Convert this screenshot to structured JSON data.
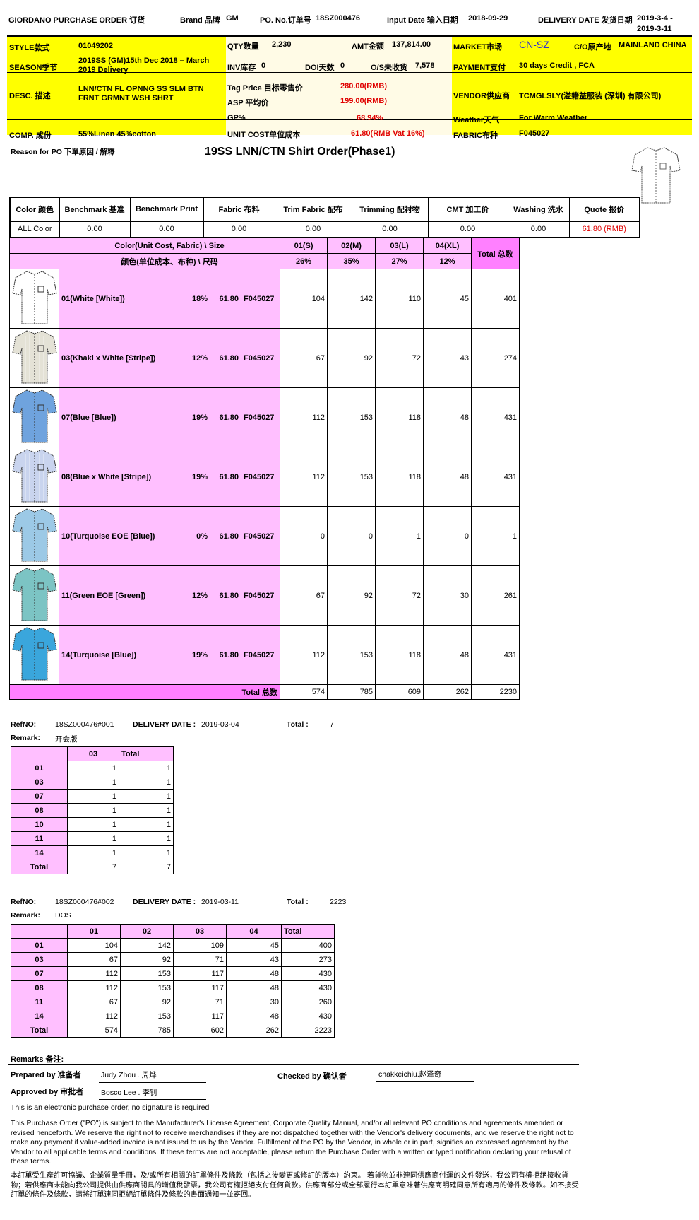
{
  "header": {
    "title": "GIORDANO PURCHASE ORDER 订货",
    "brand_label": "Brand 品牌",
    "brand": "GM",
    "po_label": "PO. No.订单号",
    "po": "18SZ000476",
    "input_date_label": "Input Date 输入日期",
    "input_date": "2018-09-29",
    "delivery_label": "DELIVERY DATE 发货日期",
    "delivery_1": "2019-3-4 -",
    "delivery_2": "2019-3-11"
  },
  "info": {
    "style_label": "STYLE款式",
    "style": "01049202",
    "qty_label": "QTY数量",
    "qty": "2,230",
    "amt_label": "AMT金额",
    "amt": "137,814.00",
    "market_label": "MARKET市场",
    "market": "CN-SZ",
    "co_label": "C/O原产地",
    "co": "MAINLAND CHINA",
    "season_label": "SEASON季节",
    "season": "2019SS (GM)15th Dec 2018 – March 2019 Delivery",
    "inv_label": "INV库存",
    "inv": "0",
    "doi_label": "DOI天数",
    "doi": "0",
    "os_label": "O/S未收货",
    "os": "7,578",
    "payment_label": "PAYMENT支付",
    "payment": "30 days Credit , FCA",
    "desc_label": "DESC. 描述",
    "desc": "LNN/CTN FL OPNNG SS SLM BTN FRNT GRMNT WSH SHRT",
    "tag_label": "Tag Price 目标零售价",
    "tag": "280.00(RMB)",
    "asp_label": "ASP 平均价",
    "asp": "199.00(RMB)",
    "vendor_label": "VENDOR供应商",
    "vendor": "TCMGLSLY(溢籍益服装 (深圳) 有限公司)",
    "gp_label": "GP%",
    "gp": "68.94%",
    "weather_label": "Weather天气",
    "weather": "For Warm Weather",
    "comp_label": "COMP. 成份",
    "comp": "55%Linen 45%cotton",
    "unit_label": "UNIT COST单位成本",
    "unit": "61.80(RMB Vat 16%)",
    "fabric_label": "FABRIC布种",
    "fabric": "F045027"
  },
  "reason_label": "Reason for PO 下單原因 / 解釋",
  "order_title": "19SS LNN/CTN Shirt Order(Phase1)",
  "cost_table": {
    "headers": [
      "Color 颜色",
      "Benchmark 基准",
      "Benchmark Print",
      "Fabric 布料",
      "Trim Fabric 配布",
      "Trimming 配衬物",
      "CMT 加工价",
      "Washing 洗水",
      "Quote 报价"
    ],
    "row": [
      "ALL Color",
      "0.00",
      "0.00",
      "0.00",
      "0.00",
      "0.00",
      "0.00",
      "0.00",
      "61.80 (RMB)"
    ]
  },
  "main_table": {
    "head1": "Color(Unit Cost, Fabric) \\ Size",
    "head2": "颜色(单位成本、布种) \\ 尺码",
    "sizes": [
      "01(S)",
      "02(M)",
      "03(L)",
      "04(XL)"
    ],
    "size_pct": [
      "26%",
      "35%",
      "27%",
      "12%"
    ],
    "total_label": "Total 总数",
    "rows": [
      {
        "name": "01(White [White])",
        "pct": "18%",
        "cost": "61.80",
        "fabric": "F045027",
        "qty": [
          "104",
          "142",
          "110",
          "45"
        ],
        "total": "401",
        "color": "#ffffff"
      },
      {
        "name": "03(Khaki x White [Stripe])",
        "pct": "12%",
        "cost": "61.80",
        "fabric": "F045027",
        "qty": [
          "67",
          "92",
          "72",
          "43"
        ],
        "total": "274",
        "color": "#e4e2d6"
      },
      {
        "name": "07(Blue [Blue])",
        "pct": "19%",
        "cost": "61.80",
        "fabric": "F045027",
        "qty": [
          "112",
          "153",
          "118",
          "48"
        ],
        "total": "431",
        "color": "#6fa3de"
      },
      {
        "name": "08(Blue x White [Stripe])",
        "pct": "19%",
        "cost": "61.80",
        "fabric": "F045027",
        "qty": [
          "112",
          "153",
          "118",
          "48"
        ],
        "total": "431",
        "color": "#c9d4ee"
      },
      {
        "name": "10(Turquoise EOE [Blue])",
        "pct": "0%",
        "cost": "61.80",
        "fabric": "F045027",
        "qty": [
          "0",
          "0",
          "1",
          "0"
        ],
        "total": "1",
        "color": "#9cc9e6"
      },
      {
        "name": "11(Green EOE [Green])",
        "pct": "12%",
        "cost": "61.80",
        "fabric": "F045027",
        "qty": [
          "67",
          "92",
          "72",
          "30"
        ],
        "total": "261",
        "color": "#7cc4c4"
      },
      {
        "name": "14(Turquoise [Blue])",
        "pct": "19%",
        "cost": "61.80",
        "fabric": "F045027",
        "qty": [
          "112",
          "153",
          "118",
          "48"
        ],
        "total": "431",
        "color": "#3aa6dc"
      }
    ],
    "footer_label": "Total 总数",
    "footer": [
      "574",
      "785",
      "609",
      "262",
      "2230"
    ]
  },
  "deliveries": [
    {
      "ref_label": "RefNO:",
      "ref": "18SZ000476#001",
      "date_label": "DELIVERY DATE :",
      "date": "2019-03-04",
      "total_label": "Total :",
      "total": "7",
      "remark_label": "Remark:",
      "remark": "开会版",
      "headers": [
        "",
        "03",
        "Total"
      ],
      "rows": [
        [
          "01",
          "1",
          "1"
        ],
        [
          "03",
          "1",
          "1"
        ],
        [
          "07",
          "1",
          "1"
        ],
        [
          "08",
          "1",
          "1"
        ],
        [
          "10",
          "1",
          "1"
        ],
        [
          "11",
          "1",
          "1"
        ],
        [
          "14",
          "1",
          "1"
        ],
        [
          "Total",
          "7",
          "7"
        ]
      ]
    },
    {
      "ref_label": "RefNO:",
      "ref": "18SZ000476#002",
      "date_label": "DELIVERY DATE :",
      "date": "2019-03-11",
      "total_label": "Total :",
      "total": "2223",
      "remark_label": "Remark:",
      "remark": "DOS",
      "headers": [
        "",
        "01",
        "02",
        "03",
        "04",
        "Total"
      ],
      "rows": [
        [
          "01",
          "104",
          "142",
          "109",
          "45",
          "400"
        ],
        [
          "03",
          "67",
          "92",
          "71",
          "43",
          "273"
        ],
        [
          "07",
          "112",
          "153",
          "117",
          "48",
          "430"
        ],
        [
          "08",
          "112",
          "153",
          "117",
          "48",
          "430"
        ],
        [
          "11",
          "67",
          "92",
          "71",
          "30",
          "260"
        ],
        [
          "14",
          "112",
          "153",
          "117",
          "48",
          "430"
        ],
        [
          "Total",
          "574",
          "785",
          "602",
          "262",
          "2223"
        ]
      ]
    }
  ],
  "signoff": {
    "remarks_label": "Remarks 备注:",
    "prepared_label": "Prepared by 准备者",
    "prepared": "Judy Zhou . 周烨",
    "checked_label": "Checked by 确认者",
    "checked": "chakkeichiu.赵泽奇",
    "approved_label": "Approved by 审批者",
    "approved": "Bosco Lee . 李钊",
    "electronic": "This is an electronic purchase order, no signature is required"
  },
  "terms_en": "This Purchase Order (\"PO\") is subject to the Manufacturer's License Agreement, Corporate Quality Manual, and/or all relevant PO conditions and agreements amended or revised henceforth. We reserve the right not to receive merchandises if they are not dispatched together with the Vendor's delivery documents, and we reserve the right not to make any payment if value-added invoice is not issued to us by the Vendor. Fulfillment of the PO by the Vendor, in whole or in part, signifies an expressed agreement by the Vendor to all applicable terms and conditions. If these terms are not acceptable, please return the Purchase Order with a written or typed notification declaring your refusal of these terms.",
  "terms_zh": "本訂單受生產許可協議、企業質量手冊，及/或所有相關的訂單條件及條款（包括之後變更或修訂的版本）約束。 若貨物並非連同供應商付運的文件發送，我公司有權拒絕接收貨物；若供應商未能向我公司提供由供應商開具的增值稅發票，我公司有權拒絕支付任何貨款。供應商部分或全部履行本訂單意味著供應商明確同意所有適用的條件及條款。如不接受訂單的條件及條款，請將訂單連同拒絕訂單條件及條款的書面通知一並寄回。",
  "colors": {
    "yellow": "#ffff00",
    "pink": "#ffbfff",
    "magenta": "#ff80ff",
    "red": "#e00000",
    "market_blue": "#3333cc"
  }
}
